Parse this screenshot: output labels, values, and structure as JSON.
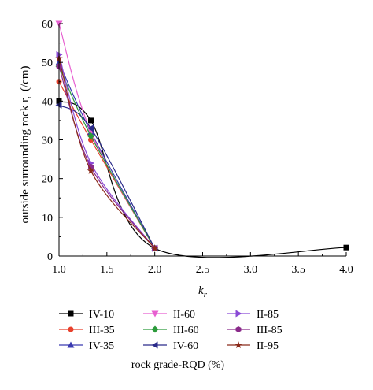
{
  "chart_data": {
    "type": "line",
    "xlabel": "k",
    "xlabel_sub": "r",
    "ylabel": "outside surrounding rock r",
    "ylabel_sub": "c",
    "ylabel_unit": "(/cm)",
    "xlim": [
      1.0,
      4.0
    ],
    "ylim": [
      0,
      60
    ],
    "xticks": [
      "1.0",
      "1.5",
      "2.0",
      "2.5",
      "3.0",
      "3.5",
      "4.0"
    ],
    "yticks": [
      "0",
      "10",
      "20",
      "30",
      "40",
      "50",
      "60"
    ],
    "legend_title": "rock grade-RQD (%)",
    "legend_position": "bottom",
    "series": [
      {
        "name": "IV-10",
        "color": "#000000",
        "marker": "square",
        "x": [
          1.0,
          1.333,
          2.0,
          4.0
        ],
        "y": [
          40,
          35,
          2,
          2.2
        ]
      },
      {
        "name": "III-35",
        "color": "#e8412c",
        "marker": "circle",
        "x": [
          1.0,
          1.333,
          2.0
        ],
        "y": [
          45,
          30,
          2
        ]
      },
      {
        "name": "IV-35",
        "color": "#3a3ab0",
        "marker": "triangle-up",
        "x": [
          1.0,
          1.333,
          2.0
        ],
        "y": [
          50,
          32,
          2
        ]
      },
      {
        "name": "II-60",
        "color": "#e75fd0",
        "marker": "triangle-down",
        "x": [
          1.0,
          1.333,
          2.0
        ],
        "y": [
          60,
          32,
          2
        ]
      },
      {
        "name": "III-60",
        "color": "#2b9a3a",
        "marker": "diamond",
        "x": [
          1.0,
          1.333,
          2.0
        ],
        "y": [
          49,
          31,
          2
        ]
      },
      {
        "name": "IV-60",
        "color": "#2a2a8a",
        "marker": "triangle-left",
        "x": [
          1.0,
          1.333,
          2.0
        ],
        "y": [
          39,
          33,
          2
        ]
      },
      {
        "name": "II-85",
        "color": "#8a4ad6",
        "marker": "triangle-right",
        "x": [
          1.0,
          1.333,
          2.0
        ],
        "y": [
          52,
          24,
          2
        ]
      },
      {
        "name": "III-85",
        "color": "#8a2a8a",
        "marker": "hexagon",
        "x": [
          1.0,
          1.333,
          2.0
        ],
        "y": [
          49,
          23,
          2
        ]
      },
      {
        "name": "II-95",
        "color": "#8a2a1a",
        "marker": "star",
        "x": [
          1.0,
          1.333,
          2.0
        ],
        "y": [
          51,
          22,
          2
        ]
      }
    ]
  }
}
